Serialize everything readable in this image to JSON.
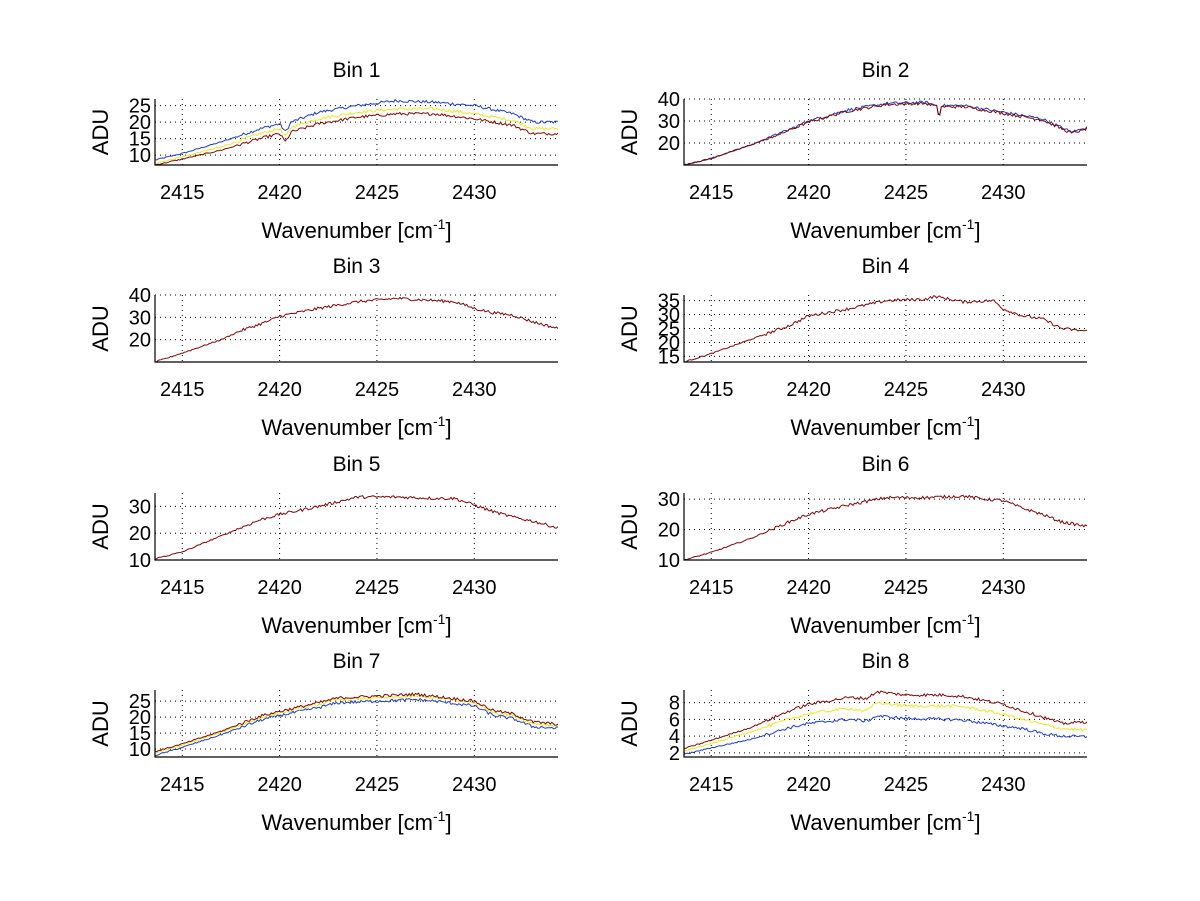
{
  "chart_data": [
    {
      "type": "line",
      "title": "Bin 1",
      "xlabel": "Wavenumber [cm",
      "xlabel_sup": "-1",
      "xlabel_close": "]",
      "ylabel": "ADU",
      "xlim": [
        2413.6,
        2434.3
      ],
      "ylim": [
        7,
        27
      ],
      "xticks": [
        2415,
        2420,
        2425,
        2430
      ],
      "yticks": [
        10,
        15,
        20,
        25
      ],
      "grid": true,
      "series": [
        {
          "name": "blue",
          "color": "#1f3fbf",
          "x": [
            2413.6,
            2415,
            2417,
            2419,
            2420,
            2420.3,
            2420.6,
            2422,
            2424,
            2426,
            2428,
            2430,
            2432,
            2433,
            2434.3
          ],
          "y": [
            8.5,
            10.5,
            14,
            18,
            19.5,
            17,
            20,
            23,
            25,
            26.5,
            26,
            25,
            22.5,
            20,
            20
          ]
        },
        {
          "name": "yellow",
          "color": "#e8e830",
          "x": [
            2413.6,
            2415,
            2417,
            2419,
            2420,
            2420.3,
            2420.6,
            2422,
            2424,
            2426,
            2428,
            2430,
            2432,
            2433,
            2434.3
          ],
          "y": [
            7.5,
            9.5,
            12.5,
            16.5,
            18,
            15.5,
            18.5,
            21,
            23,
            24,
            24,
            22.5,
            20.5,
            18,
            18
          ]
        },
        {
          "name": "darkred",
          "color": "#7a0a0a",
          "x": [
            2413.6,
            2415,
            2417,
            2419,
            2420,
            2420.3,
            2420.6,
            2422,
            2424,
            2426,
            2428,
            2430,
            2432,
            2433,
            2434.3
          ],
          "y": [
            7,
            8.8,
            11.5,
            15,
            16.5,
            14,
            17,
            19.5,
            21.5,
            22.5,
            22.5,
            21,
            19,
            16.5,
            16.5
          ]
        }
      ]
    },
    {
      "type": "line",
      "title": "Bin 2",
      "xlabel": "Wavenumber [cm",
      "xlabel_sup": "-1",
      "xlabel_close": "]",
      "ylabel": "ADU",
      "xlim": [
        2413.6,
        2434.3
      ],
      "ylim": [
        10,
        40
      ],
      "xticks": [
        2415,
        2420,
        2425,
        2430
      ],
      "yticks": [
        20,
        30,
        40
      ],
      "grid": true,
      "series": [
        {
          "name": "blue",
          "color": "#1f3fbf",
          "x": [
            2413.6,
            2415,
            2417,
            2419,
            2420,
            2422,
            2424,
            2426,
            2426.6,
            2426.7,
            2426.8,
            2428,
            2430,
            2432,
            2433.5,
            2434.3
          ],
          "y": [
            10,
            13,
            19,
            26,
            30,
            35,
            38,
            38.5,
            37,
            31,
            37,
            37,
            34,
            31,
            25,
            27
          ]
        },
        {
          "name": "darkred",
          "color": "#7a0a0a",
          "x": [
            2413.6,
            2415,
            2417,
            2419,
            2420,
            2422,
            2424,
            2426,
            2426.6,
            2426.7,
            2426.8,
            2428,
            2430,
            2432,
            2433.5,
            2434.3
          ],
          "y": [
            10,
            13,
            19,
            25.8,
            29.5,
            34.5,
            37.5,
            38,
            36.5,
            31,
            36.5,
            36.5,
            33.5,
            30.5,
            24.5,
            26.5
          ]
        }
      ]
    },
    {
      "type": "line",
      "title": "Bin 3",
      "xlabel": "Wavenumber [cm",
      "xlabel_sup": "-1",
      "xlabel_close": "]",
      "ylabel": "ADU",
      "xlim": [
        2413.6,
        2434.3
      ],
      "ylim": [
        10,
        40
      ],
      "xticks": [
        2415,
        2420,
        2425,
        2430
      ],
      "yticks": [
        20,
        30,
        40
      ],
      "grid": true,
      "series": [
        {
          "name": "darkred",
          "color": "#7a0a0a",
          "x": [
            2413.6,
            2415,
            2417,
            2418,
            2419.5,
            2420,
            2422,
            2424,
            2426,
            2428,
            2429,
            2430,
            2431,
            2432,
            2433,
            2434.3
          ],
          "y": [
            10,
            14,
            20,
            24,
            28.5,
            30.5,
            34,
            37,
            38.5,
            37.5,
            37,
            34,
            32,
            31,
            28,
            25
          ]
        }
      ]
    },
    {
      "type": "line",
      "title": "Bin 4",
      "xlabel": "Wavenumber [cm",
      "xlabel_sup": "-1",
      "xlabel_close": "]",
      "ylabel": "ADU",
      "xlim": [
        2413.6,
        2434.3
      ],
      "ylim": [
        13,
        37
      ],
      "xticks": [
        2415,
        2420,
        2425,
        2430
      ],
      "yticks": [
        15,
        20,
        25,
        30,
        35
      ],
      "grid": true,
      "series": [
        {
          "name": "darkred",
          "color": "#7a0a0a",
          "x": [
            2413.6,
            2415,
            2417,
            2419,
            2420,
            2422,
            2424,
            2426,
            2426.5,
            2428,
            2429.5,
            2430,
            2431,
            2432,
            2433,
            2434.3
          ],
          "y": [
            13,
            16,
            21,
            26,
            29.5,
            32,
            35,
            35.5,
            36.5,
            34.5,
            35,
            32,
            29.5,
            28.5,
            25,
            24
          ]
        }
      ]
    },
    {
      "type": "line",
      "title": "Bin 5",
      "xlabel": "Wavenumber [cm",
      "xlabel_sup": "-1",
      "xlabel_close": "]",
      "ylabel": "ADU",
      "xlim": [
        2413.6,
        2434.3
      ],
      "ylim": [
        10,
        35
      ],
      "xticks": [
        2415,
        2420,
        2425,
        2430
      ],
      "yticks": [
        10,
        20,
        30
      ],
      "grid": true,
      "series": [
        {
          "name": "darkred",
          "color": "#7a0a0a",
          "x": [
            2413.6,
            2415,
            2417,
            2419,
            2420,
            2422,
            2424,
            2426,
            2428,
            2429,
            2430,
            2431,
            2432,
            2433,
            2434.3
          ],
          "y": [
            10.5,
            13,
            19,
            25,
            27,
            30,
            33.5,
            33.5,
            33,
            33,
            30.5,
            28,
            26,
            24.5,
            22
          ]
        }
      ]
    },
    {
      "type": "line",
      "title": "Bin 6",
      "xlabel": "Wavenumber [cm",
      "xlabel_sup": "-1",
      "xlabel_close": "]",
      "ylabel": "ADU",
      "xlim": [
        2413.6,
        2434.3
      ],
      "ylim": [
        10,
        32
      ],
      "xticks": [
        2415,
        2420,
        2425,
        2430
      ],
      "yticks": [
        10,
        20,
        30
      ],
      "grid": true,
      "series": [
        {
          "name": "darkred",
          "color": "#7a0a0a",
          "x": [
            2413.6,
            2415,
            2417,
            2419,
            2420,
            2422,
            2424,
            2426,
            2428,
            2429,
            2430,
            2431,
            2432,
            2433,
            2434.3
          ],
          "y": [
            10,
            12.5,
            17,
            22.5,
            25,
            28,
            30.5,
            30.5,
            31,
            30,
            29.5,
            27,
            25,
            22.5,
            21
          ]
        }
      ]
    },
    {
      "type": "line",
      "title": "Bin 7",
      "xlabel": "Wavenumber [cm",
      "xlabel_sup": "-1",
      "xlabel_close": "]",
      "ylabel": "ADU",
      "xlim": [
        2413.6,
        2434.3
      ],
      "ylim": [
        7.5,
        28.5
      ],
      "xticks": [
        2415,
        2420,
        2425,
        2430
      ],
      "yticks": [
        10,
        15,
        20,
        25
      ],
      "grid": true,
      "series": [
        {
          "name": "blue",
          "color": "#1f3fbf",
          "x": [
            2413.6,
            2415,
            2417,
            2419,
            2420,
            2422,
            2423,
            2425,
            2427,
            2428,
            2430,
            2431,
            2432,
            2433,
            2434.3
          ],
          "y": [
            8,
            10.5,
            14.5,
            19,
            20.5,
            23,
            24.5,
            25,
            25.5,
            25,
            23.5,
            20.5,
            19.5,
            17,
            16.5
          ]
        },
        {
          "name": "yellow",
          "color": "#e8e830",
          "x": [
            2413.6,
            2415,
            2417,
            2419,
            2420,
            2422,
            2423,
            2425,
            2427,
            2428,
            2430,
            2431,
            2432,
            2433,
            2434.3
          ],
          "y": [
            8.8,
            11.2,
            15.2,
            19.8,
            21.3,
            24,
            25.5,
            26,
            26.5,
            26,
            24.5,
            21.5,
            20.5,
            18,
            17.2
          ]
        },
        {
          "name": "darkred",
          "color": "#7a0a0a",
          "x": [
            2413.6,
            2415,
            2417,
            2419,
            2420,
            2422,
            2423,
            2425,
            2427,
            2428,
            2430,
            2431,
            2432,
            2433,
            2434.3
          ],
          "y": [
            9.2,
            11.6,
            15.6,
            20.3,
            21.8,
            24.5,
            26,
            26.6,
            27.2,
            26.5,
            25,
            22,
            21,
            18.5,
            17.8
          ]
        }
      ]
    },
    {
      "type": "line",
      "title": "Bin 8",
      "xlabel": "Wavenumber [cm",
      "xlabel_sup": "-1",
      "xlabel_close": "]",
      "ylabel": "ADU",
      "xlim": [
        2413.6,
        2434.3
      ],
      "ylim": [
        1.5,
        9.5
      ],
      "xticks": [
        2415,
        2420,
        2425,
        2430
      ],
      "yticks": [
        2,
        4,
        6,
        8
      ],
      "grid": true,
      "series": [
        {
          "name": "blue",
          "color": "#1f3fbf",
          "x": [
            2413.6,
            2415,
            2417,
            2419,
            2420,
            2422,
            2423,
            2423.5,
            2425,
            2427,
            2428,
            2430,
            2431,
            2432,
            2433,
            2434.3
          ],
          "y": [
            1.8,
            2.6,
            3.6,
            5,
            5.5,
            6,
            5.8,
            6.4,
            6.1,
            6,
            5.9,
            5.2,
            4.9,
            4.3,
            4,
            3.9
          ]
        },
        {
          "name": "yellow",
          "color": "#e8e830",
          "x": [
            2413.6,
            2415,
            2417,
            2419,
            2420,
            2422,
            2423,
            2423.5,
            2425,
            2427,
            2428,
            2430,
            2431,
            2432,
            2433,
            2434.3
          ],
          "y": [
            2.2,
            3.1,
            4.5,
            6,
            6.7,
            7.3,
            7,
            8,
            7.6,
            7.6,
            7.5,
            6.6,
            6,
            5.4,
            4.9,
            4.7
          ]
        },
        {
          "name": "darkred",
          "color": "#7a0a0a",
          "x": [
            2413.6,
            2415,
            2417,
            2419,
            2420,
            2422,
            2423,
            2423.5,
            2425,
            2427,
            2428,
            2430,
            2431,
            2432,
            2433,
            2434.3
          ],
          "y": [
            2.5,
            3.5,
            5,
            7,
            7.8,
            8.6,
            8.5,
            9.3,
            8.9,
            8.9,
            8.7,
            7.8,
            7,
            6.3,
            5.5,
            5.7
          ]
        }
      ]
    }
  ]
}
